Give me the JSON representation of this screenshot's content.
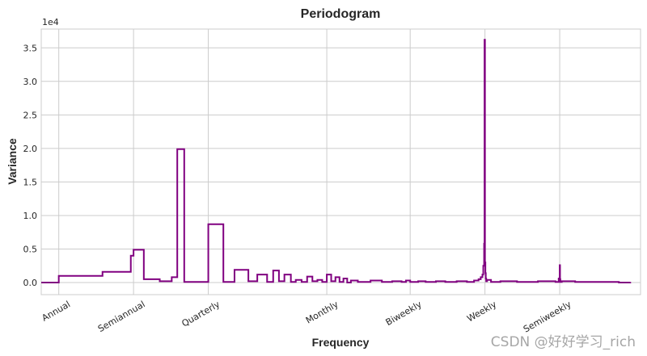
{
  "chart_data": {
    "type": "line",
    "title": "Periodogram",
    "xlabel": "Frequency",
    "ylabel": "Variance",
    "y_offset_label": "1e4",
    "x_scale": "log",
    "xlim": [
      0.85,
      220
    ],
    "ylim": [
      -0.18,
      3.78
    ],
    "y_units": "x 1e4",
    "grid": true,
    "line_color": "#800080",
    "x_ticks": [
      {
        "value": 1,
        "label": "Annual"
      },
      {
        "value": 2,
        "label": "Semiannual"
      },
      {
        "value": 4,
        "label": "Quarterly"
      },
      {
        "value": 12,
        "label": "Monthly"
      },
      {
        "value": 26,
        "label": "Biweekly"
      },
      {
        "value": 52,
        "label": "Weekly"
      },
      {
        "value": 104,
        "label": "Semiweekly"
      }
    ],
    "y_ticks": [
      {
        "value": 0.0,
        "label": "0.0"
      },
      {
        "value": 0.5,
        "label": "0.5"
      },
      {
        "value": 1.0,
        "label": "1.0"
      },
      {
        "value": 1.5,
        "label": "1.5"
      },
      {
        "value": 2.0,
        "label": "2.0"
      },
      {
        "value": 2.5,
        "label": "2.5"
      },
      {
        "value": 3.0,
        "label": "3.0"
      },
      {
        "value": 3.5,
        "label": "3.5"
      }
    ],
    "series": [
      {
        "x": [
          0.85,
          1,
          1.5,
          1.95,
          2,
          2.2,
          2.55,
          2.85,
          3,
          3.2,
          4,
          4.6,
          5.1,
          5.8,
          6.3,
          6.9,
          7.3,
          7.7,
          8.1,
          8.6,
          9.0,
          9.5,
          10.0,
          10.5,
          11.0,
          11.5,
          12.0,
          12.5,
          13.0,
          13.5,
          14.0,
          14.5,
          15.0,
          16,
          18,
          20,
          22,
          24,
          25,
          26,
          28,
          30,
          33,
          36,
          40,
          44,
          47,
          49,
          50,
          50.8,
          51.2,
          51.6,
          51.8,
          52.0,
          52.2,
          52.4,
          52.6,
          53,
          55,
          60,
          70,
          85,
          100,
          103,
          104,
          104.3,
          104.6,
          106,
          120,
          150,
          180,
          200
        ],
        "y": [
          0.0,
          0.1,
          0.16,
          0.4,
          0.49,
          0.05,
          0.02,
          0.08,
          1.99,
          0.01,
          0.87,
          0.01,
          0.19,
          0.02,
          0.12,
          0.01,
          0.18,
          0.02,
          0.12,
          0.01,
          0.04,
          0.01,
          0.09,
          0.02,
          0.04,
          0.01,
          0.12,
          0.02,
          0.08,
          0.01,
          0.06,
          0.0,
          0.03,
          0.01,
          0.03,
          0.01,
          0.02,
          0.01,
          0.03,
          0.01,
          0.02,
          0.01,
          0.02,
          0.01,
          0.02,
          0.01,
          0.03,
          0.05,
          0.08,
          0.12,
          0.25,
          0.58,
          3.62,
          0.3,
          0.14,
          0.06,
          0.02,
          0.04,
          0.01,
          0.02,
          0.01,
          0.02,
          0.01,
          0.06,
          0.26,
          0.05,
          0.01,
          0.02,
          0.01,
          0.01,
          0.0,
          0.01
        ]
      }
    ]
  },
  "watermark": "CSDN @好好学习_rich"
}
